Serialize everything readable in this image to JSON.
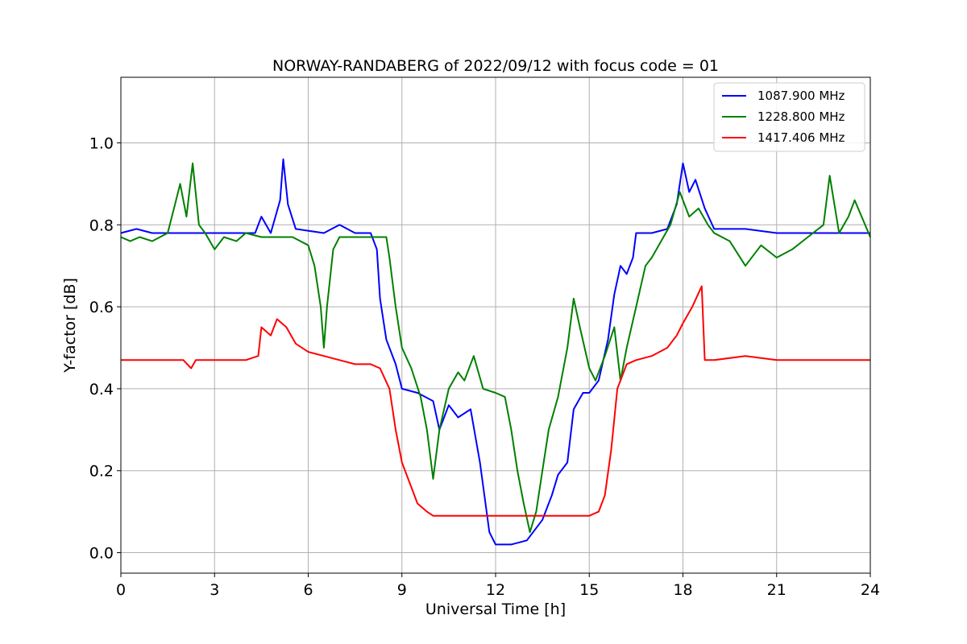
{
  "chart_data": {
    "type": "line",
    "title": "NORWAY-RANDABERG of 2022/09/12 with focus code = 01",
    "xlabel": "Universal Time [h]",
    "ylabel": "Y-factor [dB]",
    "xlim": [
      0,
      24
    ],
    "ylim": [
      -0.05,
      1.16
    ],
    "xticks": [
      0,
      3,
      6,
      9,
      12,
      15,
      18,
      21,
      24
    ],
    "xtick_labels": [
      "0",
      "3",
      "6",
      "9",
      "12",
      "15",
      "18",
      "21",
      "24"
    ],
    "yticks": [
      0.0,
      0.2,
      0.4,
      0.6,
      0.8,
      1.0
    ],
    "ytick_labels": [
      "0.0",
      "0.2",
      "0.4",
      "0.6",
      "0.8",
      "1.0"
    ],
    "grid": true,
    "legend_position": "top-right",
    "series": [
      {
        "name": "1087.900 MHz",
        "color": "#0000ff",
        "points": [
          [
            0,
            0.78
          ],
          [
            0.5,
            0.79
          ],
          [
            1.0,
            0.78
          ],
          [
            2.0,
            0.78
          ],
          [
            3.0,
            0.78
          ],
          [
            4.3,
            0.78
          ],
          [
            4.5,
            0.82
          ],
          [
            4.8,
            0.78
          ],
          [
            5.1,
            0.86
          ],
          [
            5.2,
            0.96
          ],
          [
            5.35,
            0.85
          ],
          [
            5.6,
            0.79
          ],
          [
            6.5,
            0.78
          ],
          [
            7.0,
            0.8
          ],
          [
            7.5,
            0.78
          ],
          [
            8.0,
            0.78
          ],
          [
            8.2,
            0.74
          ],
          [
            8.3,
            0.62
          ],
          [
            8.5,
            0.52
          ],
          [
            8.8,
            0.46
          ],
          [
            9.0,
            0.4
          ],
          [
            9.5,
            0.39
          ],
          [
            10.0,
            0.37
          ],
          [
            10.2,
            0.3
          ],
          [
            10.5,
            0.36
          ],
          [
            10.8,
            0.33
          ],
          [
            11.2,
            0.35
          ],
          [
            11.5,
            0.22
          ],
          [
            11.8,
            0.05
          ],
          [
            12.0,
            0.02
          ],
          [
            12.5,
            0.02
          ],
          [
            13.0,
            0.03
          ],
          [
            13.5,
            0.08
          ],
          [
            13.8,
            0.14
          ],
          [
            14.0,
            0.19
          ],
          [
            14.3,
            0.22
          ],
          [
            14.5,
            0.35
          ],
          [
            14.8,
            0.39
          ],
          [
            15.0,
            0.39
          ],
          [
            15.3,
            0.42
          ],
          [
            15.6,
            0.52
          ],
          [
            15.8,
            0.63
          ],
          [
            16.0,
            0.7
          ],
          [
            16.2,
            0.68
          ],
          [
            16.4,
            0.72
          ],
          [
            16.5,
            0.78
          ],
          [
            17.0,
            0.78
          ],
          [
            17.5,
            0.79
          ],
          [
            17.8,
            0.85
          ],
          [
            18.0,
            0.95
          ],
          [
            18.2,
            0.88
          ],
          [
            18.4,
            0.91
          ],
          [
            18.7,
            0.84
          ],
          [
            19.0,
            0.79
          ],
          [
            20.0,
            0.79
          ],
          [
            21.0,
            0.78
          ],
          [
            22.0,
            0.78
          ],
          [
            23.0,
            0.78
          ],
          [
            24.0,
            0.78
          ]
        ]
      },
      {
        "name": "1228.800 MHz",
        "color": "#008000",
        "points": [
          [
            0,
            0.77
          ],
          [
            0.3,
            0.76
          ],
          [
            0.6,
            0.77
          ],
          [
            1.0,
            0.76
          ],
          [
            1.5,
            0.78
          ],
          [
            1.7,
            0.84
          ],
          [
            1.9,
            0.9
          ],
          [
            2.1,
            0.82
          ],
          [
            2.3,
            0.95
          ],
          [
            2.5,
            0.8
          ],
          [
            2.7,
            0.78
          ],
          [
            3.0,
            0.74
          ],
          [
            3.3,
            0.77
          ],
          [
            3.7,
            0.76
          ],
          [
            4.0,
            0.78
          ],
          [
            4.5,
            0.77
          ],
          [
            5.0,
            0.77
          ],
          [
            5.5,
            0.77
          ],
          [
            6.0,
            0.75
          ],
          [
            6.2,
            0.7
          ],
          [
            6.4,
            0.6
          ],
          [
            6.5,
            0.5
          ],
          [
            6.6,
            0.6
          ],
          [
            6.8,
            0.74
          ],
          [
            7.0,
            0.77
          ],
          [
            8.0,
            0.77
          ],
          [
            8.5,
            0.77
          ],
          [
            8.6,
            0.72
          ],
          [
            8.8,
            0.6
          ],
          [
            9.0,
            0.5
          ],
          [
            9.3,
            0.45
          ],
          [
            9.6,
            0.38
          ],
          [
            9.8,
            0.3
          ],
          [
            10.0,
            0.18
          ],
          [
            10.2,
            0.3
          ],
          [
            10.5,
            0.4
          ],
          [
            10.8,
            0.44
          ],
          [
            11.0,
            0.42
          ],
          [
            11.3,
            0.48
          ],
          [
            11.6,
            0.4
          ],
          [
            12.0,
            0.39
          ],
          [
            12.3,
            0.38
          ],
          [
            12.5,
            0.3
          ],
          [
            12.7,
            0.2
          ],
          [
            12.9,
            0.12
          ],
          [
            13.1,
            0.05
          ],
          [
            13.3,
            0.1
          ],
          [
            13.5,
            0.2
          ],
          [
            13.7,
            0.3
          ],
          [
            14.0,
            0.38
          ],
          [
            14.3,
            0.5
          ],
          [
            14.5,
            0.62
          ],
          [
            14.7,
            0.55
          ],
          [
            15.0,
            0.45
          ],
          [
            15.2,
            0.42
          ],
          [
            15.5,
            0.48
          ],
          [
            15.8,
            0.55
          ],
          [
            16.0,
            0.42
          ],
          [
            16.2,
            0.5
          ],
          [
            16.5,
            0.6
          ],
          [
            16.8,
            0.7
          ],
          [
            17.0,
            0.72
          ],
          [
            17.3,
            0.76
          ],
          [
            17.6,
            0.8
          ],
          [
            17.9,
            0.88
          ],
          [
            18.2,
            0.82
          ],
          [
            18.5,
            0.84
          ],
          [
            18.8,
            0.8
          ],
          [
            19.0,
            0.78
          ],
          [
            19.5,
            0.76
          ],
          [
            20.0,
            0.7
          ],
          [
            20.5,
            0.75
          ],
          [
            21.0,
            0.72
          ],
          [
            21.5,
            0.74
          ],
          [
            22.0,
            0.77
          ],
          [
            22.5,
            0.8
          ],
          [
            22.7,
            0.92
          ],
          [
            23.0,
            0.78
          ],
          [
            23.3,
            0.82
          ],
          [
            23.5,
            0.86
          ],
          [
            24.0,
            0.77
          ]
        ]
      },
      {
        "name": "1417.406 MHz",
        "color": "#ff0000",
        "points": [
          [
            0,
            0.47
          ],
          [
            1.0,
            0.47
          ],
          [
            2.0,
            0.47
          ],
          [
            2.25,
            0.45
          ],
          [
            2.4,
            0.47
          ],
          [
            3.0,
            0.47
          ],
          [
            4.0,
            0.47
          ],
          [
            4.4,
            0.48
          ],
          [
            4.5,
            0.55
          ],
          [
            4.8,
            0.53
          ],
          [
            5.0,
            0.57
          ],
          [
            5.3,
            0.55
          ],
          [
            5.6,
            0.51
          ],
          [
            6.0,
            0.49
          ],
          [
            6.5,
            0.48
          ],
          [
            7.0,
            0.47
          ],
          [
            7.5,
            0.46
          ],
          [
            8.0,
            0.46
          ],
          [
            8.3,
            0.45
          ],
          [
            8.6,
            0.4
          ],
          [
            8.8,
            0.3
          ],
          [
            9.0,
            0.22
          ],
          [
            9.3,
            0.16
          ],
          [
            9.5,
            0.12
          ],
          [
            9.8,
            0.1
          ],
          [
            10.0,
            0.09
          ],
          [
            11.0,
            0.09
          ],
          [
            12.0,
            0.09
          ],
          [
            13.0,
            0.09
          ],
          [
            14.0,
            0.09
          ],
          [
            15.0,
            0.09
          ],
          [
            15.3,
            0.1
          ],
          [
            15.5,
            0.14
          ],
          [
            15.7,
            0.25
          ],
          [
            15.9,
            0.4
          ],
          [
            16.2,
            0.46
          ],
          [
            16.5,
            0.47
          ],
          [
            17.0,
            0.48
          ],
          [
            17.5,
            0.5
          ],
          [
            17.8,
            0.53
          ],
          [
            18.0,
            0.56
          ],
          [
            18.3,
            0.6
          ],
          [
            18.6,
            0.65
          ],
          [
            18.7,
            0.47
          ],
          [
            19.0,
            0.47
          ],
          [
            20.0,
            0.48
          ],
          [
            21.0,
            0.47
          ],
          [
            22.0,
            0.47
          ],
          [
            23.0,
            0.47
          ],
          [
            24.0,
            0.47
          ]
        ]
      }
    ]
  }
}
